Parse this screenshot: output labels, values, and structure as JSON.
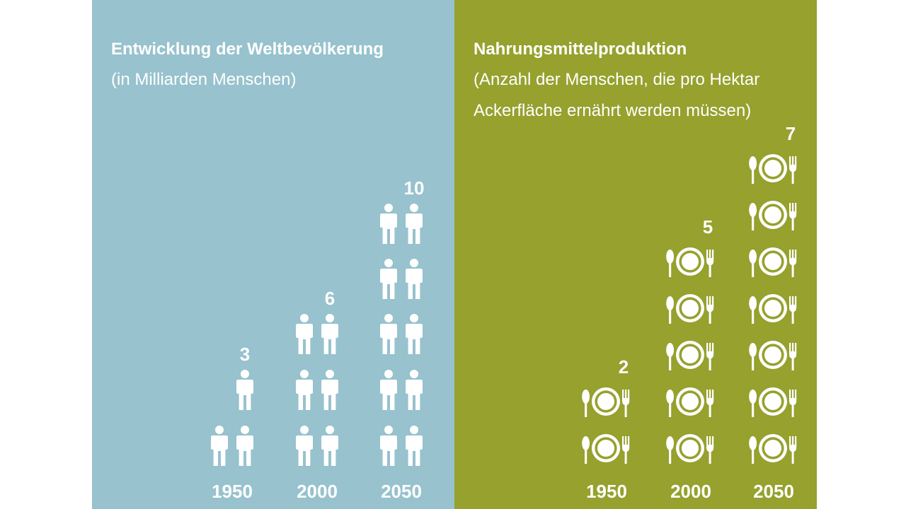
{
  "chart_data": [
    {
      "type": "pictograph",
      "title": "Entwicklung der Weltbevölkerung",
      "subtitle": "(in Milliarden Menschen)",
      "categories": [
        "1950",
        "2000",
        "2050"
      ],
      "values": [
        3,
        6,
        10
      ],
      "value_labels": [
        "3",
        "6",
        "10"
      ],
      "icon": "person-icon",
      "background_color": "#97c2ce"
    },
    {
      "type": "pictograph",
      "title": "Nahrungsmittelproduktion",
      "subtitle": "(Anzahl der Menschen, die pro Hektar Ackerfläche ernährt werden müssen)",
      "categories": [
        "1950",
        "2000",
        "2050"
      ],
      "values": [
        2,
        5,
        7
      ],
      "value_labels": [
        "2",
        "5",
        "7"
      ],
      "icon": "plate-cutlery-icon",
      "background_color": "#96a12e"
    }
  ],
  "colors": {
    "left_panel": "#97c2ce",
    "right_panel": "#96a12e",
    "foreground": "#ffffff"
  }
}
